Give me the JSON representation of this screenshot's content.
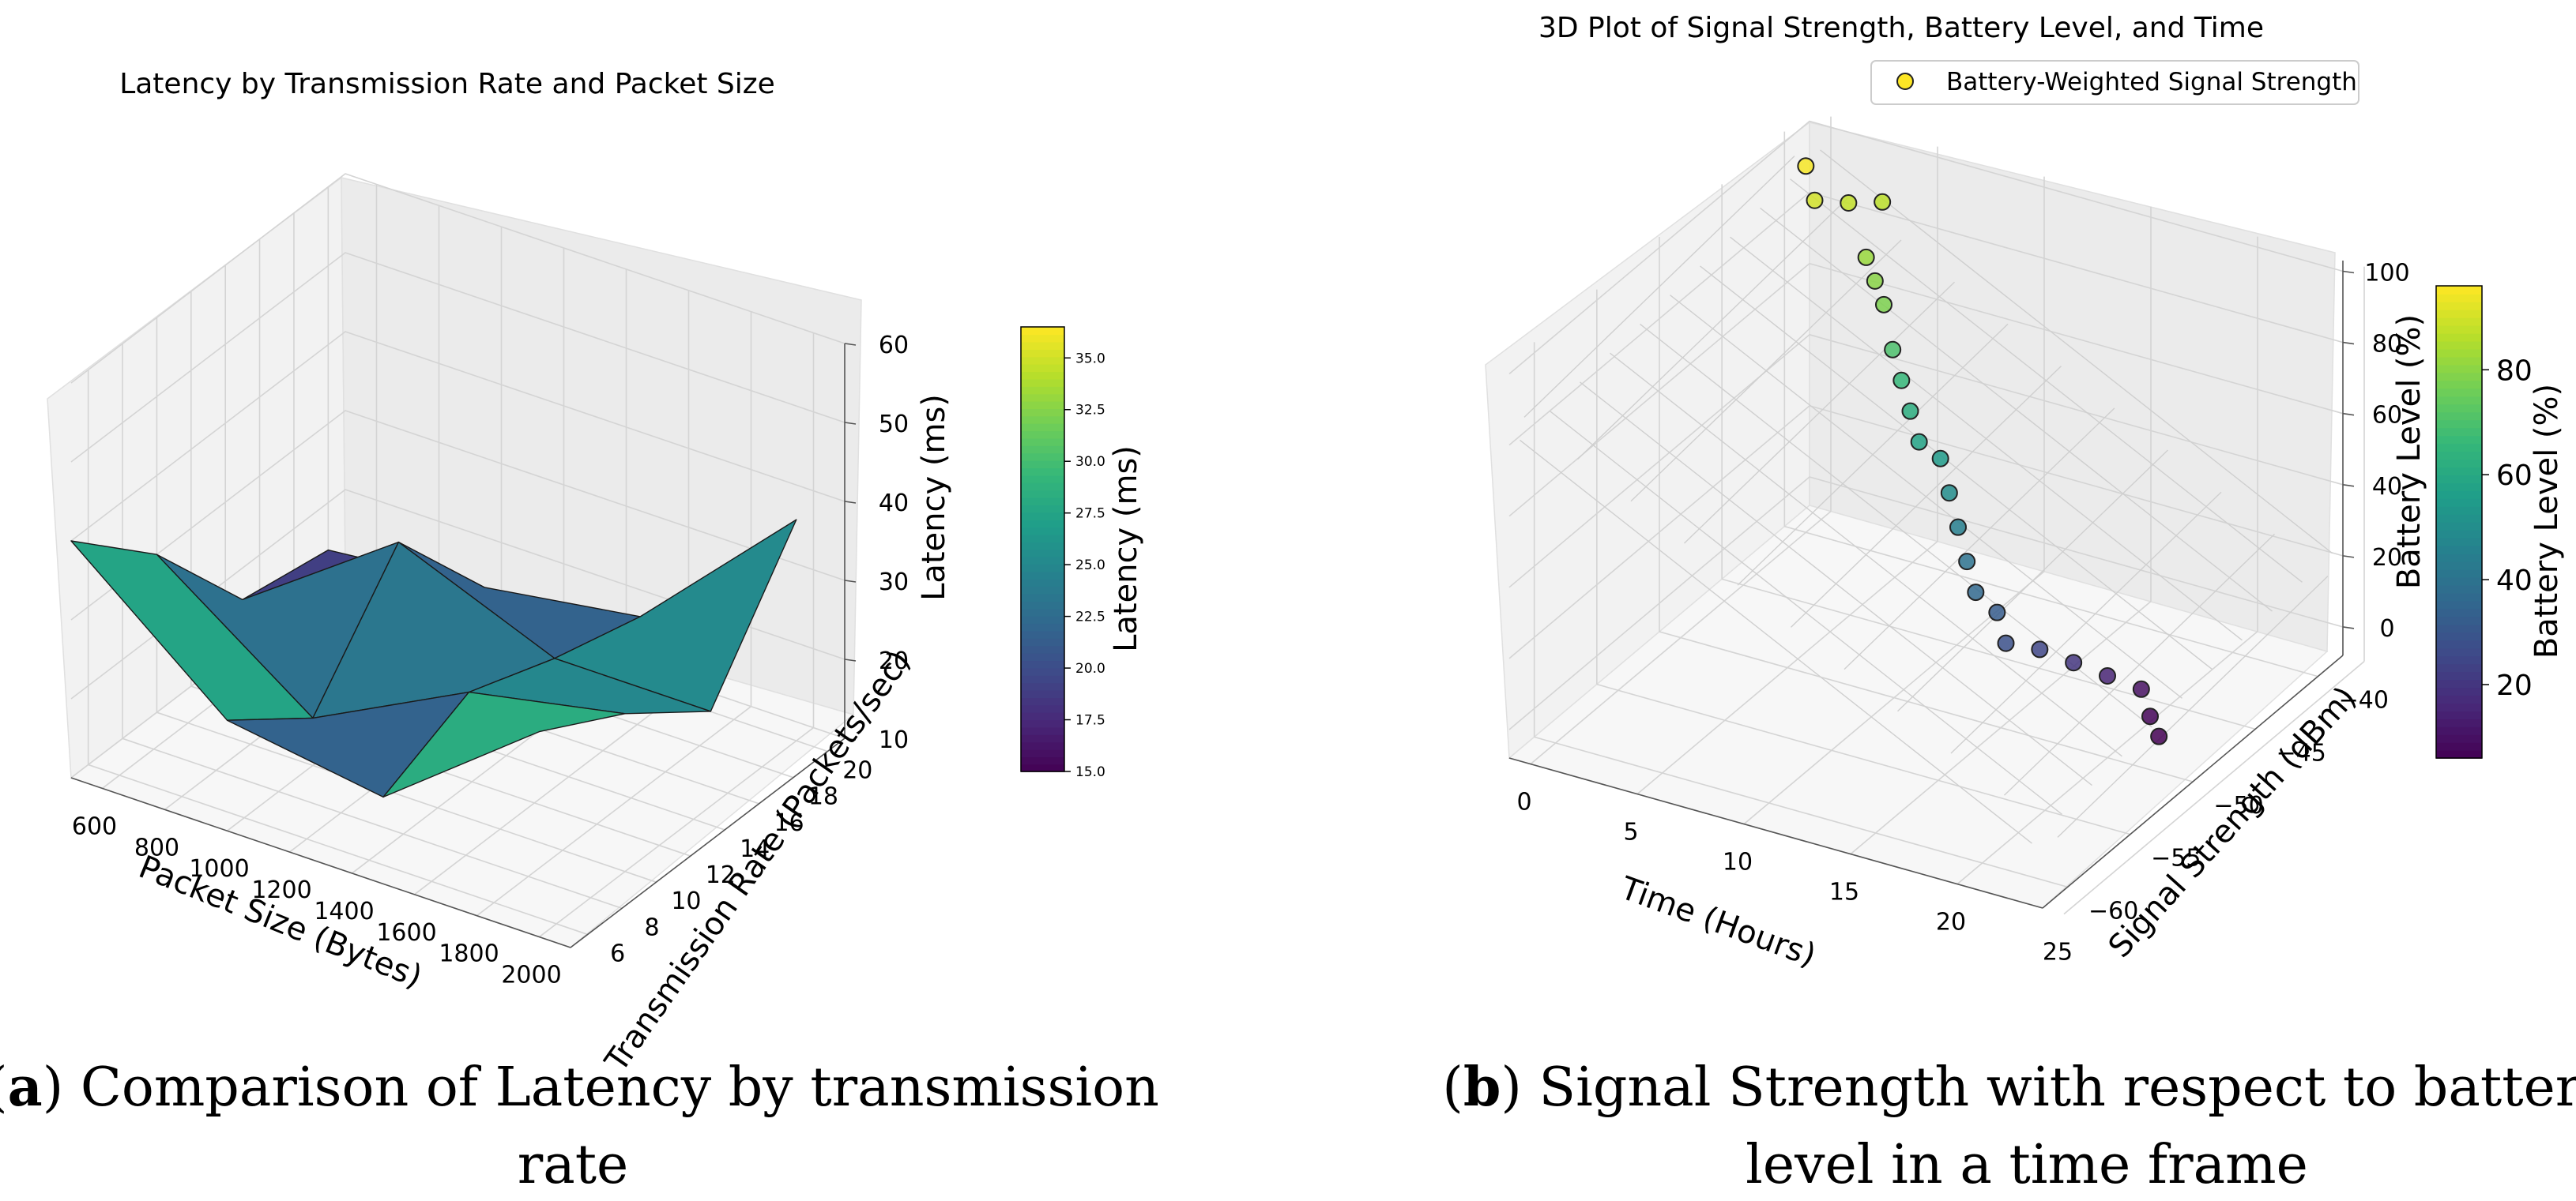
{
  "chart_data": [
    {
      "type": "surface3d",
      "title": "Latency by Transmission Rate and Packet Size",
      "xlabel": "Packet Size (Bytes)",
      "ylabel": "Transmission Rate (Packets/sec)",
      "zlabel": "Latency (ms)",
      "x_ticks": [
        "600",
        "800",
        "1000",
        "1200",
        "1400",
        "1600",
        "1800",
        "2000"
      ],
      "y_ticks": [
        "6",
        "8",
        "10",
        "12",
        "14",
        "16",
        "18",
        "20"
      ],
      "z_ticks": [
        "10",
        "20",
        "30",
        "40",
        "50",
        "60"
      ],
      "xlim": [
        500,
        2100
      ],
      "ylim": [
        5,
        21
      ],
      "zlim": [
        10,
        60
      ],
      "x": [
        500,
        1000,
        1500,
        2000
      ],
      "y": [
        5,
        10,
        15,
        20
      ],
      "z": [
        [
          40,
          24,
          21,
          36
        ],
        [
          30,
          16,
          26,
          30
        ],
        [
          16,
          30,
          22,
          22
        ],
        [
          14,
          16,
          19,
          38
        ]
      ],
      "colorbar": {
        "label": "Latency (ms)",
        "ticks": [
          "15.0",
          "17.5",
          "20.0",
          "22.5",
          "25.0",
          "27.5",
          "30.0",
          "32.5",
          "35.0"
        ],
        "range": [
          15,
          36.5
        ],
        "colormap": "viridis"
      }
    },
    {
      "type": "scatter3d",
      "title": "3D Plot of Signal Strength, Battery Level, and Time",
      "xlabel": "Time (Hours)",
      "ylabel": "Signal Strength (dBm)",
      "zlabel": "Battery Level (%)",
      "x_ticks": [
        "0",
        "5",
        "10",
        "15",
        "20",
        "25"
      ],
      "y_ticks": [
        "−60",
        "−55",
        "−50",
        "−45",
        "−40"
      ],
      "z_ticks": [
        "0",
        "20",
        "40",
        "60",
        "80",
        "100"
      ],
      "xlim": [
        -1,
        24
      ],
      "ylim": [
        -62,
        -38
      ],
      "zlim": [
        -8,
        103
      ],
      "legend": {
        "label": "Battery-Weighted Signal Strength",
        "position": "top-right"
      },
      "points": [
        {
          "t": 0,
          "s": -40,
          "b": 95
        },
        {
          "t": 1,
          "s": -41,
          "b": 90
        },
        {
          "t": 2,
          "s": -40,
          "b": 88
        },
        {
          "t": 3,
          "s": -39,
          "b": 87
        },
        {
          "t": 4,
          "s": -42,
          "b": 82
        },
        {
          "t": 5,
          "s": -43,
          "b": 80
        },
        {
          "t": 6,
          "s": -44,
          "b": 78
        },
        {
          "t": 7,
          "s": -45,
          "b": 70
        },
        {
          "t": 8,
          "s": -46,
          "b": 66
        },
        {
          "t": 9,
          "s": -47,
          "b": 62
        },
        {
          "t": 10,
          "s": -48,
          "b": 58
        },
        {
          "t": 11,
          "s": -48,
          "b": 55
        },
        {
          "t": 12,
          "s": -49,
          "b": 50
        },
        {
          "t": 13,
          "s": -50,
          "b": 45
        },
        {
          "t": 14,
          "s": -51,
          "b": 40
        },
        {
          "t": 15,
          "s": -52,
          "b": 36
        },
        {
          "t": 16,
          "s": -52,
          "b": 32
        },
        {
          "t": 17,
          "s": -53,
          "b": 28
        },
        {
          "t": 18,
          "s": -52,
          "b": 25
        },
        {
          "t": 19,
          "s": -51,
          "b": 20
        },
        {
          "t": 20,
          "s": -50,
          "b": 15
        },
        {
          "t": 21,
          "s": -49,
          "b": 10
        },
        {
          "t": 22,
          "s": -50,
          "b": 7
        },
        {
          "t": 23,
          "s": -51,
          "b": 6
        }
      ],
      "colorbar": {
        "label": "Battery Level (%)",
        "ticks": [
          "20",
          "40",
          "60",
          "80"
        ],
        "range": [
          6,
          96
        ],
        "colormap": "viridis"
      }
    }
  ],
  "captions": [
    {
      "letter": "a",
      "lines": [
        "Comparison of Latency by transmission",
        "rate"
      ]
    },
    {
      "letter": "b",
      "lines": [
        "Signal Strength with respect to battery",
        "level in a time frame"
      ]
    }
  ]
}
